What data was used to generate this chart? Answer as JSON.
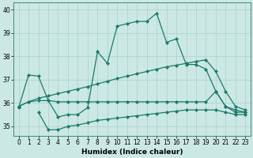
{
  "xlabel": "Humidex (Indice chaleur)",
  "background_color": "#cce8e4",
  "grid_color": "#b0d4ce",
  "line_color": "#1a7a6a",
  "xlim": [
    -0.5,
    23.5
  ],
  "ylim": [
    34.6,
    40.3
  ],
  "yticks": [
    35,
    36,
    37,
    38,
    39,
    40
  ],
  "xticks": [
    0,
    1,
    2,
    3,
    4,
    5,
    6,
    7,
    8,
    9,
    10,
    11,
    12,
    13,
    14,
    15,
    16,
    17,
    18,
    19,
    20,
    21,
    22,
    23
  ],
  "series": [
    {
      "x": [
        0,
        1,
        2,
        3,
        4,
        5,
        6,
        7,
        8,
        9,
        10,
        11,
        12,
        13,
        14,
        15,
        16,
        17,
        18,
        19,
        20,
        21,
        22,
        23
      ],
      "y": [
        35.8,
        37.2,
        37.15,
        36.1,
        35.4,
        35.5,
        35.5,
        35.8,
        38.2,
        37.7,
        39.3,
        39.4,
        39.5,
        39.5,
        39.85,
        38.6,
        38.75,
        37.65,
        37.65,
        37.45,
        36.5,
        35.85,
        35.6,
        35.6
      ]
    },
    {
      "x": [
        0,
        1,
        2,
        3,
        4,
        5,
        6,
        7,
        8,
        9,
        10,
        11,
        12,
        13,
        14,
        15,
        16,
        17,
        18,
        19,
        20,
        21,
        22,
        23
      ],
      "y": [
        35.85,
        36.05,
        36.2,
        36.3,
        36.4,
        36.5,
        36.6,
        36.7,
        36.82,
        36.93,
        37.05,
        37.15,
        37.25,
        37.35,
        37.45,
        37.55,
        37.62,
        37.7,
        37.78,
        37.85,
        37.35,
        36.5,
        35.85,
        35.7
      ]
    },
    {
      "x": [
        0,
        1,
        2,
        3,
        4,
        5,
        6,
        7,
        8,
        9,
        10,
        11,
        12,
        13,
        14,
        15,
        16,
        17,
        18,
        19,
        20,
        21,
        22,
        23
      ],
      "y": [
        35.85,
        36.05,
        36.1,
        36.1,
        36.05,
        36.05,
        36.05,
        36.05,
        36.05,
        36.05,
        36.05,
        36.05,
        36.05,
        36.05,
        36.05,
        36.05,
        36.05,
        36.05,
        36.05,
        36.05,
        36.5,
        35.85,
        35.7,
        35.6
      ]
    },
    {
      "x": [
        2,
        3,
        4,
        5,
        6,
        7,
        8,
        9,
        10,
        11,
        12,
        13,
        14,
        15,
        16,
        17,
        18,
        19,
        20,
        21,
        22,
        23
      ],
      "y": [
        35.6,
        34.85,
        34.85,
        35.0,
        35.05,
        35.15,
        35.25,
        35.3,
        35.35,
        35.4,
        35.45,
        35.5,
        35.55,
        35.6,
        35.65,
        35.7,
        35.7,
        35.7,
        35.7,
        35.6,
        35.5,
        35.5
      ]
    }
  ]
}
